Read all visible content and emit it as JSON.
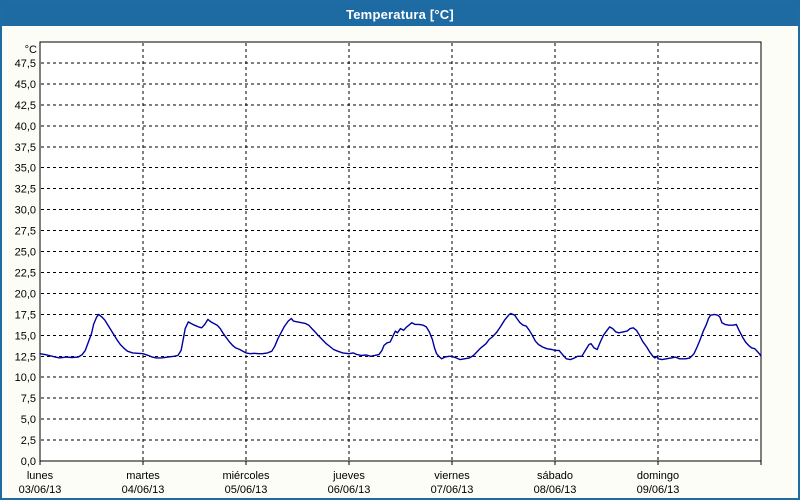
{
  "header": {
    "title": "Temperatura [°C]"
  },
  "colors": {
    "accent_blue": "#1d6ca4",
    "titlebar_blue": "#1e6ba3",
    "series_blue": "#0000a0",
    "page_bg": "#fbfdf6",
    "plot_bg": "#ffffff",
    "grid": "#000000",
    "text": "#000000"
  },
  "chart_data": {
    "type": "line",
    "title": "Temperatura [°C]",
    "y_unit_label": "°C",
    "ylabel": "°C",
    "ylim": [
      0,
      50
    ],
    "y_tick_step": 2.5,
    "y_tick_labels_top_down": [
      "47,5",
      "45,0",
      "42,5",
      "40,0",
      "37,5",
      "35,0",
      "32,5",
      "30,0",
      "27,5",
      "25,0",
      "22,5",
      "20,0",
      "17,5",
      "15,0",
      "12,5",
      "10,0",
      "7,5",
      "5,0",
      "2,5",
      "0,0"
    ],
    "grid_style": "dashed",
    "legend_position": "none",
    "x_days": [
      {
        "name": "lunes",
        "date": "03/06/13"
      },
      {
        "name": "martes",
        "date": "04/06/13"
      },
      {
        "name": "miércoles",
        "date": "05/06/13"
      },
      {
        "name": "jueves",
        "date": "06/06/13"
      },
      {
        "name": "viernes",
        "date": "07/06/13"
      },
      {
        "name": "sábado",
        "date": "08/06/13"
      },
      {
        "name": "domingo",
        "date": "09/06/13"
      }
    ],
    "series": [
      {
        "name": "Temperatura",
        "color": "#0000a0",
        "x_unit": "days_from_2013-06-03",
        "points": [
          [
            0.0,
            12.8
          ],
          [
            0.05,
            12.7
          ],
          [
            0.1,
            12.55
          ],
          [
            0.15,
            12.4
          ],
          [
            0.19,
            12.3
          ],
          [
            0.25,
            12.4
          ],
          [
            0.31,
            12.35
          ],
          [
            0.37,
            12.4
          ],
          [
            0.41,
            12.7
          ],
          [
            0.44,
            13.2
          ],
          [
            0.47,
            14.2
          ],
          [
            0.5,
            15.2
          ],
          [
            0.52,
            16.3
          ],
          [
            0.55,
            17.2
          ],
          [
            0.57,
            17.5
          ],
          [
            0.6,
            17.2
          ],
          [
            0.63,
            16.8
          ],
          [
            0.66,
            16.2
          ],
          [
            0.69,
            15.6
          ],
          [
            0.72,
            15.0
          ],
          [
            0.75,
            14.4
          ],
          [
            0.78,
            13.9
          ],
          [
            0.82,
            13.4
          ],
          [
            0.85,
            13.1
          ],
          [
            0.9,
            12.9
          ],
          [
            0.95,
            12.85
          ],
          [
            1.0,
            12.8
          ],
          [
            1.05,
            12.6
          ],
          [
            1.09,
            12.4
          ],
          [
            1.13,
            12.3
          ],
          [
            1.18,
            12.3
          ],
          [
            1.24,
            12.4
          ],
          [
            1.3,
            12.5
          ],
          [
            1.34,
            12.6
          ],
          [
            1.37,
            13.2
          ],
          [
            1.39,
            14.5
          ],
          [
            1.41,
            15.8
          ],
          [
            1.44,
            16.6
          ],
          [
            1.47,
            16.4
          ],
          [
            1.5,
            16.2
          ],
          [
            1.54,
            16.0
          ],
          [
            1.57,
            15.9
          ],
          [
            1.6,
            16.3
          ],
          [
            1.63,
            16.9
          ],
          [
            1.66,
            16.6
          ],
          [
            1.69,
            16.4
          ],
          [
            1.72,
            16.2
          ],
          [
            1.75,
            15.8
          ],
          [
            1.78,
            15.2
          ],
          [
            1.81,
            14.7
          ],
          [
            1.84,
            14.2
          ],
          [
            1.87,
            13.8
          ],
          [
            1.9,
            13.5
          ],
          [
            1.94,
            13.3
          ],
          [
            1.97,
            13.1
          ],
          [
            2.0,
            12.9
          ],
          [
            2.04,
            12.8
          ],
          [
            2.08,
            12.85
          ],
          [
            2.12,
            12.8
          ],
          [
            2.16,
            12.8
          ],
          [
            2.21,
            12.9
          ],
          [
            2.25,
            13.1
          ],
          [
            2.28,
            13.7
          ],
          [
            2.31,
            14.6
          ],
          [
            2.34,
            15.3
          ],
          [
            2.37,
            16.0
          ],
          [
            2.41,
            16.7
          ],
          [
            2.44,
            17.0
          ],
          [
            2.46,
            16.7
          ],
          [
            2.5,
            16.6
          ],
          [
            2.54,
            16.5
          ],
          [
            2.58,
            16.4
          ],
          [
            2.61,
            16.2
          ],
          [
            2.64,
            15.8
          ],
          [
            2.67,
            15.4
          ],
          [
            2.7,
            15.0
          ],
          [
            2.74,
            14.5
          ],
          [
            2.78,
            14.0
          ],
          [
            2.82,
            13.6
          ],
          [
            2.85,
            13.3
          ],
          [
            2.89,
            13.1
          ],
          [
            2.94,
            12.9
          ],
          [
            3.0,
            12.8
          ],
          [
            3.04,
            12.9
          ],
          [
            3.08,
            12.7
          ],
          [
            3.12,
            12.6
          ],
          [
            3.17,
            12.65
          ],
          [
            3.21,
            12.5
          ],
          [
            3.25,
            12.6
          ],
          [
            3.29,
            12.7
          ],
          [
            3.32,
            13.2
          ],
          [
            3.34,
            13.8
          ],
          [
            3.37,
            14.1
          ],
          [
            3.4,
            14.2
          ],
          [
            3.43,
            15.0
          ],
          [
            3.45,
            15.5
          ],
          [
            3.47,
            15.3
          ],
          [
            3.5,
            15.8
          ],
          [
            3.53,
            15.6
          ],
          [
            3.56,
            16.0
          ],
          [
            3.59,
            16.3
          ],
          [
            3.61,
            16.5
          ],
          [
            3.64,
            16.3
          ],
          [
            3.68,
            16.3
          ],
          [
            3.72,
            16.2
          ],
          [
            3.75,
            16.0
          ],
          [
            3.78,
            15.4
          ],
          [
            3.81,
            14.5
          ],
          [
            3.83,
            13.5
          ],
          [
            3.85,
            12.8
          ],
          [
            3.88,
            12.4
          ],
          [
            3.9,
            12.2
          ],
          [
            3.93,
            12.4
          ],
          [
            3.97,
            12.5
          ],
          [
            4.0,
            12.5
          ],
          [
            4.04,
            12.3
          ],
          [
            4.08,
            12.1
          ],
          [
            4.12,
            12.2
          ],
          [
            4.17,
            12.3
          ],
          [
            4.21,
            12.6
          ],
          [
            4.24,
            13.0
          ],
          [
            4.28,
            13.5
          ],
          [
            4.33,
            14.0
          ],
          [
            4.36,
            14.5
          ],
          [
            4.39,
            14.8
          ],
          [
            4.43,
            15.3
          ],
          [
            4.47,
            16.0
          ],
          [
            4.51,
            16.8
          ],
          [
            4.55,
            17.4
          ],
          [
            4.57,
            17.6
          ],
          [
            4.61,
            17.4
          ],
          [
            4.63,
            17.0
          ],
          [
            4.66,
            16.5
          ],
          [
            4.69,
            16.2
          ],
          [
            4.72,
            16.1
          ],
          [
            4.75,
            15.6
          ],
          [
            4.78,
            15.0
          ],
          [
            4.81,
            14.3
          ],
          [
            4.84,
            13.9
          ],
          [
            4.88,
            13.6
          ],
          [
            4.92,
            13.4
          ],
          [
            4.97,
            13.3
          ],
          [
            5.0,
            13.2
          ],
          [
            5.04,
            13.2
          ],
          [
            5.08,
            12.6
          ],
          [
            5.11,
            12.2
          ],
          [
            5.15,
            12.1
          ],
          [
            5.19,
            12.3
          ],
          [
            5.22,
            12.5
          ],
          [
            5.26,
            12.5
          ],
          [
            5.3,
            13.3
          ],
          [
            5.33,
            13.9
          ],
          [
            5.35,
            14.0
          ],
          [
            5.38,
            13.5
          ],
          [
            5.41,
            13.3
          ],
          [
            5.44,
            14.2
          ],
          [
            5.47,
            15.0
          ],
          [
            5.5,
            15.5
          ],
          [
            5.53,
            16.0
          ],
          [
            5.56,
            15.8
          ],
          [
            5.59,
            15.4
          ],
          [
            5.62,
            15.3
          ],
          [
            5.66,
            15.4
          ],
          [
            5.7,
            15.5
          ],
          [
            5.73,
            15.8
          ],
          [
            5.76,
            15.9
          ],
          [
            5.79,
            15.6
          ],
          [
            5.82,
            15.0
          ],
          [
            5.85,
            14.3
          ],
          [
            5.89,
            13.6
          ],
          [
            5.92,
            13.0
          ],
          [
            5.95,
            12.5
          ],
          [
            5.97,
            12.3
          ],
          [
            5.99,
            12.5
          ],
          [
            6.0,
            12.2
          ],
          [
            6.04,
            12.1
          ],
          [
            6.08,
            12.2
          ],
          [
            6.13,
            12.3
          ],
          [
            6.17,
            12.4
          ],
          [
            6.21,
            12.2
          ],
          [
            6.27,
            12.2
          ],
          [
            6.31,
            12.3
          ],
          [
            6.35,
            12.8
          ],
          [
            6.38,
            13.6
          ],
          [
            6.41,
            14.5
          ],
          [
            6.44,
            15.5
          ],
          [
            6.47,
            16.3
          ],
          [
            6.49,
            17.0
          ],
          [
            6.51,
            17.4
          ],
          [
            6.55,
            17.5
          ],
          [
            6.58,
            17.4
          ],
          [
            6.6,
            17.2
          ],
          [
            6.62,
            16.5
          ],
          [
            6.65,
            16.3
          ],
          [
            6.69,
            16.2
          ],
          [
            6.73,
            16.2
          ],
          [
            6.76,
            16.3
          ],
          [
            6.79,
            15.5
          ],
          [
            6.82,
            14.8
          ],
          [
            6.85,
            14.2
          ],
          [
            6.88,
            13.8
          ],
          [
            6.91,
            13.5
          ],
          [
            6.94,
            13.4
          ],
          [
            6.97,
            13.0
          ],
          [
            6.99,
            12.7
          ],
          [
            7.0,
            12.5
          ]
        ]
      }
    ]
  }
}
